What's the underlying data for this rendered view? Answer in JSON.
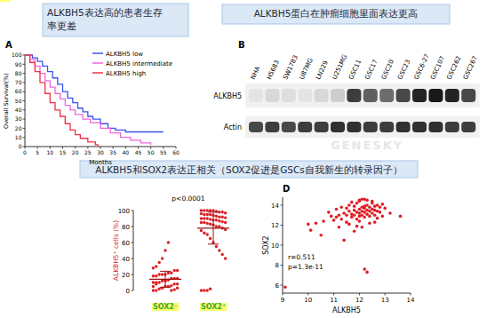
{
  "captions": [
    [
      "ALKBH5表达高的患者生存",
      "率更差"
    ],
    [
      "ALKBH5蛋白在肿瘤细胞里面表达更高"
    ],
    [
      "ALKBH5和SOX2表达正相关（SOX2促进是GSCs自我新生的转录因子）"
    ]
  ],
  "watermark": "GENESKY",
  "chart_data": [
    {
      "type": "line",
      "panel": "A",
      "x_label": "Months",
      "y_label": "Overall Survival(%)",
      "xlim": [
        0,
        60
      ],
      "xticks": [
        0,
        5,
        10,
        15,
        20,
        25,
        30,
        35,
        40,
        45,
        50,
        55,
        60
      ],
      "ylim": [
        0,
        100
      ],
      "yticks": [
        0,
        10,
        20,
        30,
        40,
        50,
        60,
        70,
        80,
        90,
        100
      ],
      "legend": "top-right",
      "line_style": "step",
      "series": [
        {
          "name": "ALKBH5 low",
          "color": "#3a55ee",
          "x": [
            0,
            3,
            5,
            7,
            9,
            11,
            13,
            15,
            17,
            19,
            21,
            23,
            25,
            27,
            30,
            33,
            36,
            40,
            55
          ],
          "values": [
            100,
            97,
            93,
            88,
            82,
            75,
            68,
            60,
            53,
            48,
            42,
            38,
            33,
            30,
            25,
            20,
            18,
            16,
            16
          ]
        },
        {
          "name": "ALKBH5 intermediate",
          "color": "#ee66dd",
          "x": [
            0,
            2,
            4,
            6,
            8,
            10,
            12,
            14,
            16,
            18,
            20,
            23,
            26,
            30,
            34,
            38,
            42,
            46,
            50
          ],
          "values": [
            100,
            95,
            88,
            80,
            72,
            65,
            58,
            52,
            45,
            40,
            35,
            30,
            26,
            20,
            15,
            10,
            7,
            4,
            2
          ]
        },
        {
          "name": "ALKBH5 high",
          "color": "#ee3344",
          "x": [
            0,
            2,
            4,
            6,
            8,
            10,
            12,
            14,
            16,
            18,
            20,
            22,
            25,
            28,
            29
          ],
          "values": [
            100,
            92,
            82,
            70,
            58,
            48,
            40,
            33,
            25,
            18,
            13,
            9,
            5,
            2,
            0
          ]
        }
      ]
    },
    {
      "type": "blot",
      "panel": "B",
      "categories": [
        "NHA",
        "H5683",
        "SW1783",
        "U87MG",
        "LN229",
        "U251MG",
        "GSC11",
        "GSC17",
        "GSC20",
        "GSC23",
        "GSC6-27",
        "GSC107",
        "GSC262",
        "GSC267"
      ],
      "series": [
        {
          "name": "ALKBH5",
          "values": [
            0.05,
            0.1,
            0.08,
            0.05,
            0.1,
            0.15,
            0.75,
            0.6,
            0.55,
            0.7,
            0.85,
            0.9,
            0.85,
            0.7
          ]
        },
        {
          "name": "Actin",
          "values": [
            0.7,
            0.75,
            0.7,
            0.75,
            0.75,
            0.8,
            0.8,
            0.75,
            0.75,
            0.8,
            0.8,
            0.8,
            0.75,
            0.75
          ]
        }
      ]
    },
    {
      "type": "dot_plot",
      "y_label": "ALKBH5⁺ cells (%)",
      "categories": [
        "SOX2⁻",
        "SOX2⁺"
      ],
      "ylim": [
        0,
        100
      ],
      "yticks": [
        0,
        20,
        40,
        60,
        80,
        100
      ],
      "annotation": "p<0.0001",
      "color": "#dd1f26",
      "values": [
        [
          0,
          0,
          2,
          3,
          5,
          5,
          6,
          8,
          8,
          10,
          10,
          10,
          12,
          12,
          13,
          15,
          15,
          15,
          18,
          18,
          20,
          20,
          20,
          22,
          22,
          25,
          25,
          28,
          30,
          35,
          40,
          50,
          60,
          0,
          1,
          3,
          5,
          8
        ],
        [
          100,
          100,
          100,
          100,
          100,
          99,
          98,
          98,
          97,
          96,
          95,
          95,
          95,
          94,
          93,
          92,
          92,
          91,
          90,
          90,
          90,
          89,
          88,
          88,
          87,
          86,
          85,
          85,
          85,
          84,
          83,
          82,
          80,
          80,
          78,
          76,
          75,
          72,
          70,
          65,
          60,
          55,
          50,
          45,
          40,
          0,
          0,
          0,
          2
        ]
      ],
      "means": [
        14,
        78
      ],
      "errors": [
        10,
        20
      ]
    },
    {
      "type": "scatter",
      "panel": "D",
      "x_label": "ALKBH5",
      "y_label": "SOX2",
      "xlim": [
        9,
        14
      ],
      "xticks": [
        9,
        10,
        11,
        12,
        13,
        14
      ],
      "ylim": [
        5.2,
        14.8
      ],
      "yticks": [
        6,
        8,
        10,
        12,
        14
      ],
      "annotations": [
        "r=0.511",
        "p=1.3e-11"
      ],
      "color": "#dd1f26",
      "marker": "circle",
      "x": [
        11.0,
        11.1,
        11.2,
        11.3,
        11.4,
        11.5,
        11.5,
        11.6,
        11.7,
        11.7,
        11.8,
        11.8,
        11.9,
        11.9,
        12.0,
        12.0,
        12.0,
        12.1,
        12.1,
        12.1,
        12.2,
        12.2,
        12.2,
        12.3,
        12.3,
        12.3,
        12.4,
        12.4,
        12.4,
        12.5,
        12.5,
        12.5,
        12.6,
        12.6,
        12.7,
        12.7,
        12.8,
        12.9,
        13.0,
        12.0,
        11.9,
        12.2,
        11.6,
        11.3,
        11.1,
        10.9,
        10.8,
        10.6,
        10.5,
        10.3,
        10.1,
        10.0,
        12.2,
        12.3,
        9.1,
        11.4,
        11.8,
        12.1,
        12.6,
        11.2,
        12.9,
        13.2,
        13.6,
        12.0,
        12.1,
        11.7,
        12.3,
        12.5,
        11.5,
        11.8,
        12.2,
        12.6,
        12.8,
        12.0,
        12.4,
        11.9,
        11.6,
        12.7
      ],
      "values": [
        12.5,
        12.8,
        13.0,
        12.6,
        13.2,
        13.0,
        12.3,
        13.4,
        13.1,
        12.8,
        13.5,
        13.0,
        13.3,
        12.6,
        13.6,
        13.2,
        12.9,
        13.8,
        13.4,
        13.0,
        13.7,
        13.3,
        12.8,
        14.0,
        13.5,
        13.1,
        13.8,
        13.4,
        12.9,
        14.2,
        13.6,
        13.2,
        13.9,
        13.5,
        14.0,
        13.4,
        13.8,
        14.1,
        13.7,
        14.4,
        14.2,
        14.6,
        14.0,
        13.8,
        13.6,
        12.9,
        13.3,
        12.4,
        11.0,
        12.2,
        11.5,
        12.1,
        7.6,
        7.3,
        5.8,
        10.5,
        11.4,
        11.8,
        12.3,
        11.8,
        12.9,
        13.2,
        12.9,
        14.5,
        14.6,
        14.3,
        14.5,
        14.4,
        13.7,
        13.9,
        13.9,
        13.0,
        13.3,
        12.4,
        12.2,
        11.9,
        12.1,
        12.7
      ]
    }
  ]
}
